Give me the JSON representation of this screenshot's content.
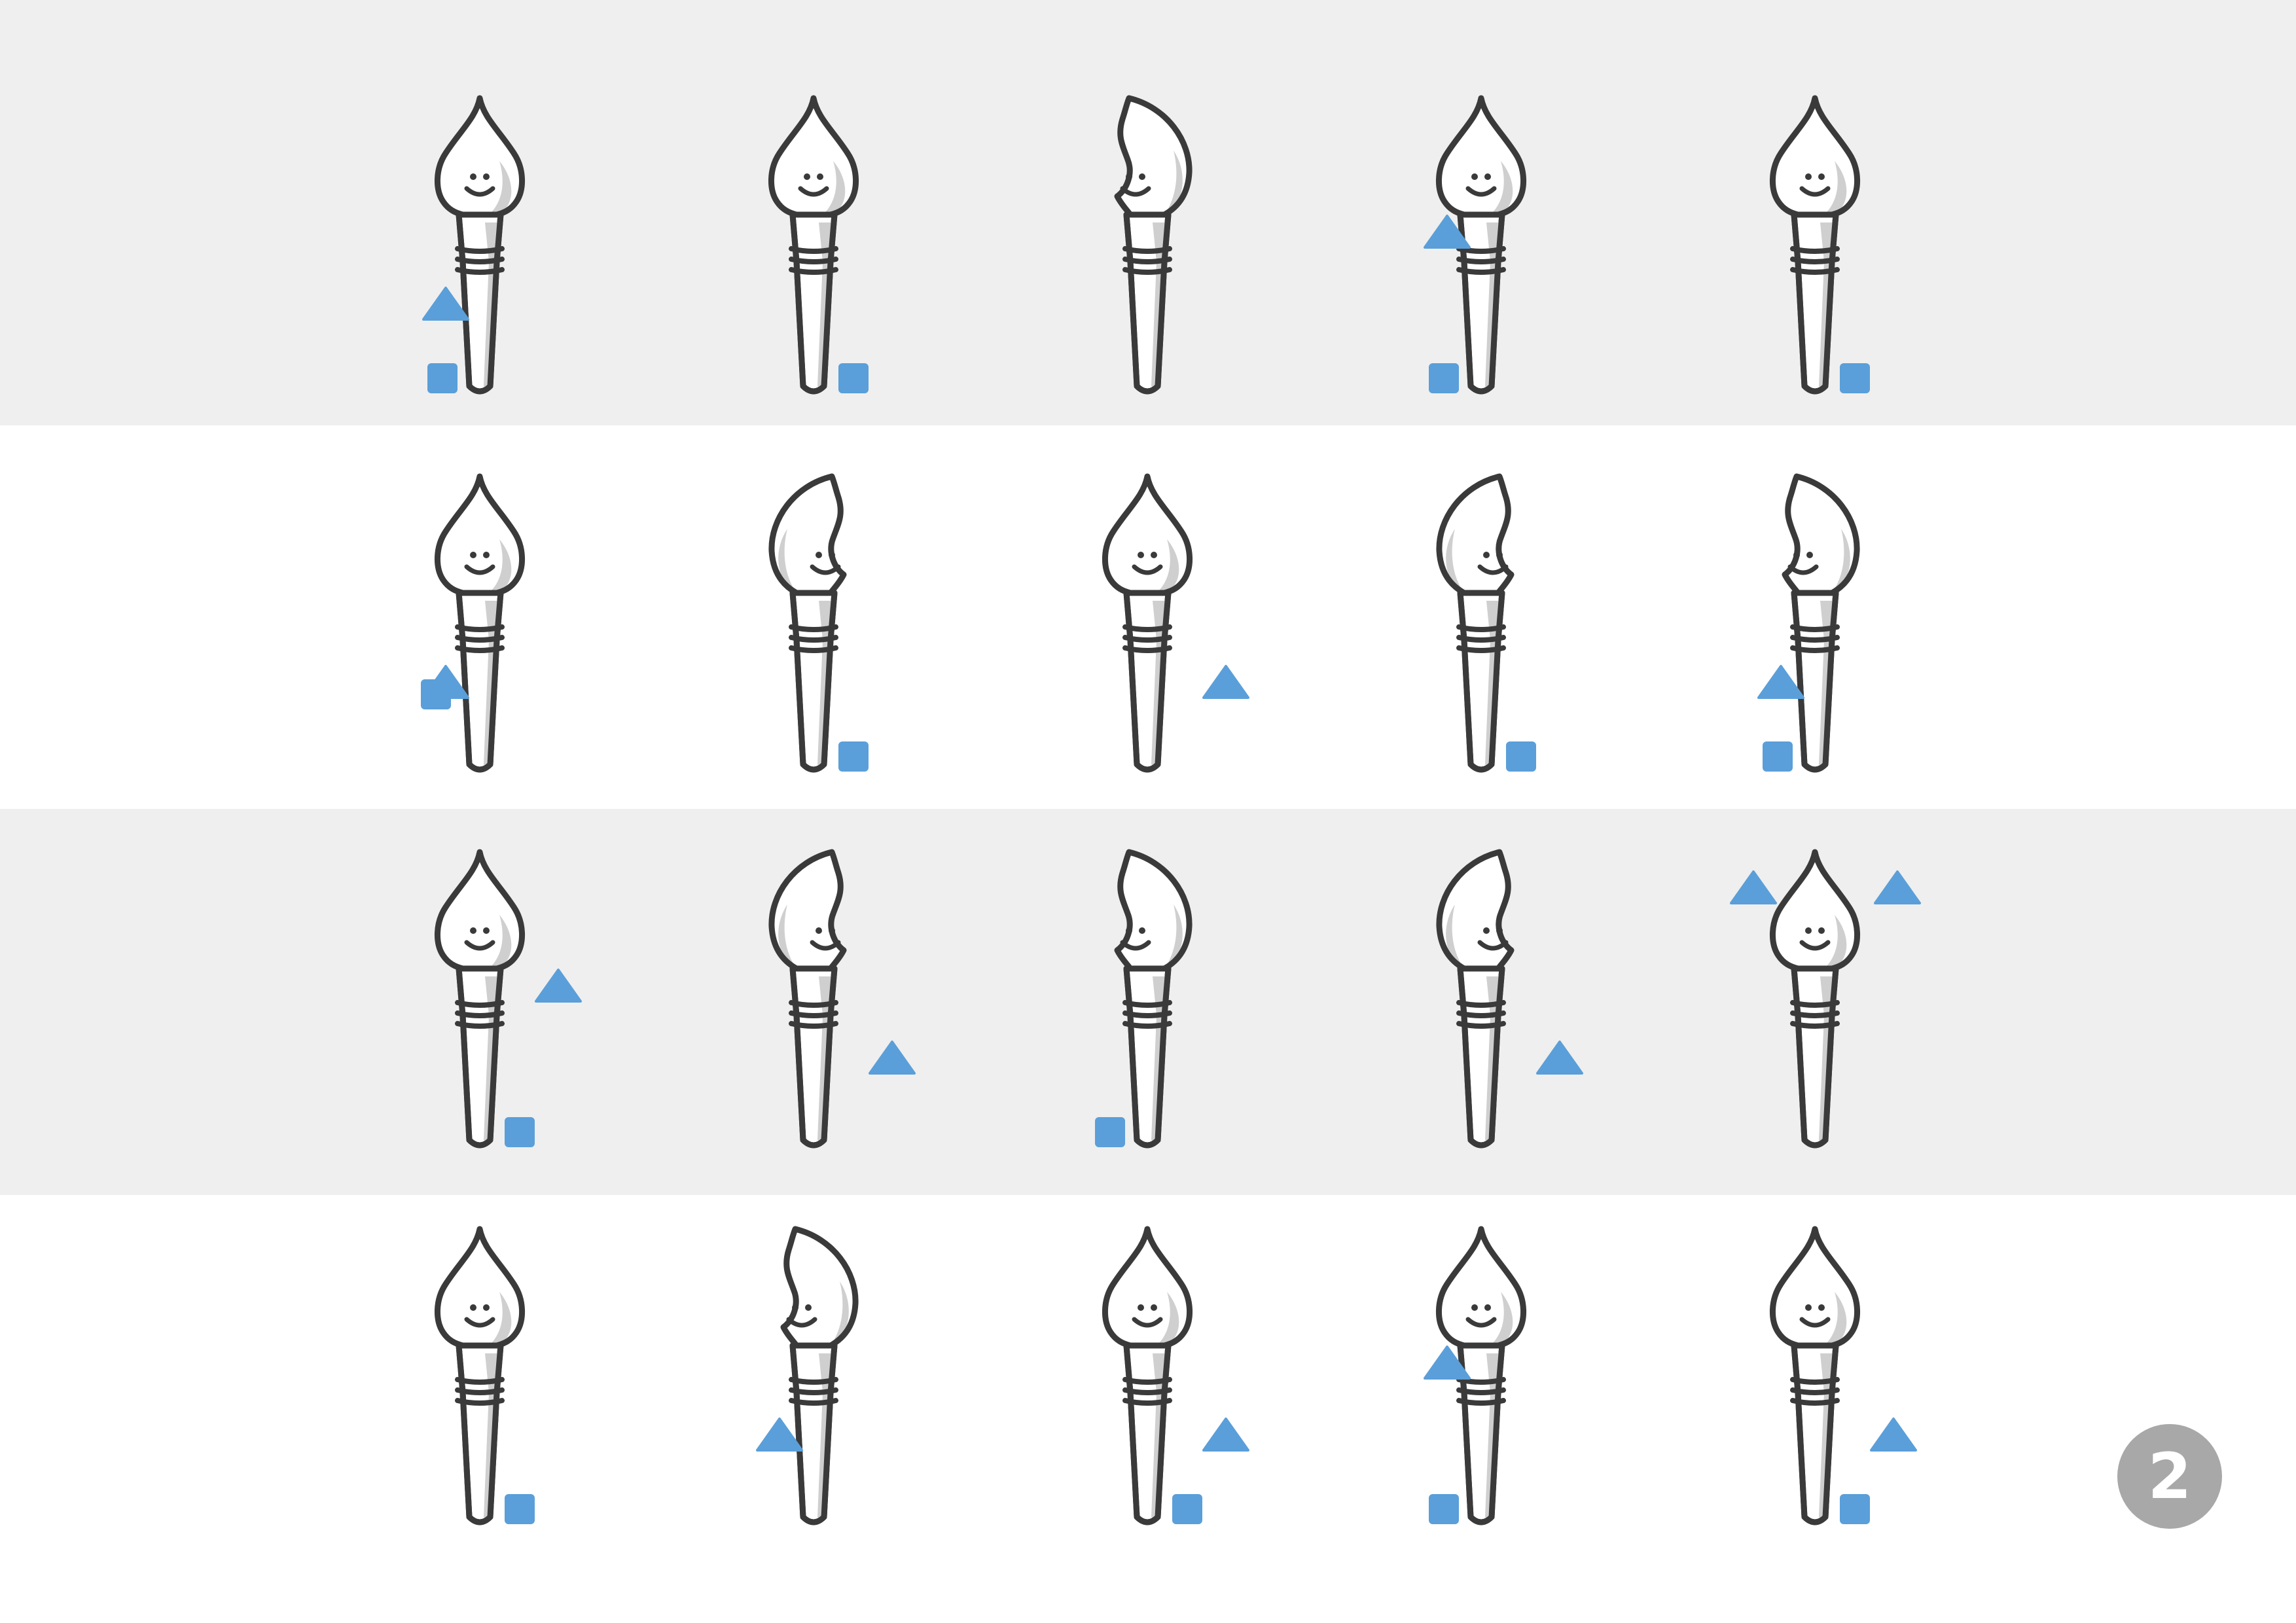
{
  "page_number": "2",
  "colors": {
    "band_shaded": "#efefef",
    "band_plain": "#ffffff",
    "outline": "#3a3a3a",
    "shade": "#cfcfcf",
    "fill": "#ffffff",
    "marker": "#5a9fd9",
    "badge": "#a8a8a8"
  },
  "rows": [
    {
      "shade": true,
      "items": [
        {
          "pose": "front",
          "markers": [
            "triangle-left-mid",
            "square-left-bottom"
          ]
        },
        {
          "pose": "front",
          "markers": [
            "square-right-bottom"
          ]
        },
        {
          "pose": "turn-left",
          "markers": []
        },
        {
          "pose": "front",
          "markers": [
            "triangle-left-top",
            "square-left-bottom"
          ]
        },
        {
          "pose": "front",
          "markers": [
            "square-right-bottom"
          ]
        }
      ]
    },
    {
      "shade": false,
      "items": [
        {
          "pose": "front",
          "markers": [
            "triangle-left-mid",
            "square-left-mid"
          ]
        },
        {
          "pose": "turn-right",
          "markers": [
            "square-right-bottom"
          ]
        },
        {
          "pose": "front",
          "markers": [
            "triangle-right-mid"
          ]
        },
        {
          "pose": "turn-right",
          "markers": [
            "square-right-bottom"
          ]
        },
        {
          "pose": "turn-left",
          "markers": [
            "triangle-left-mid",
            "square-left-bottom"
          ]
        }
      ]
    },
    {
      "shade": true,
      "items": [
        {
          "pose": "front",
          "markers": [
            "triangle-right-upper",
            "square-right-bottom"
          ]
        },
        {
          "pose": "turn-right",
          "markers": [
            "triangle-right-mid"
          ]
        },
        {
          "pose": "turn-left",
          "markers": [
            "square-left-bottom"
          ]
        },
        {
          "pose": "turn-right",
          "markers": [
            "triangle-right-mid"
          ]
        },
        {
          "pose": "front",
          "markers": [
            "triangle-left-head",
            "triangle-right-head"
          ]
        }
      ]
    },
    {
      "shade": false,
      "items": [
        {
          "pose": "front",
          "markers": [
            "square-right-bottom"
          ]
        },
        {
          "pose": "turn-left",
          "markers": [
            "triangle-left-mid"
          ]
        },
        {
          "pose": "front",
          "markers": [
            "triangle-right-mid",
            "square-right-bottom"
          ]
        },
        {
          "pose": "front",
          "markers": [
            "triangle-left-top",
            "square-left-bottom"
          ]
        },
        {
          "pose": "front",
          "markers": [
            "triangle-right-mid",
            "square-right-bottom"
          ]
        }
      ]
    }
  ]
}
